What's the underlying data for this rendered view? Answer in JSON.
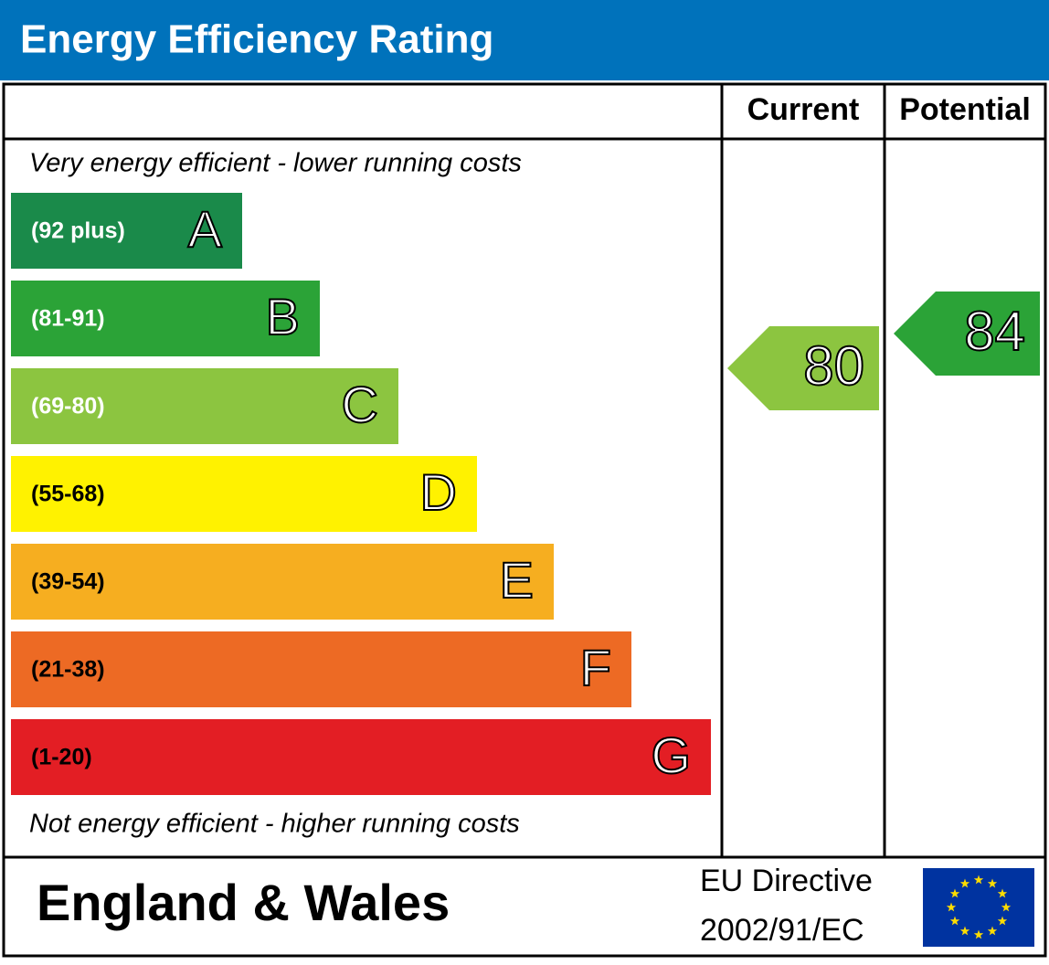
{
  "header": {
    "title": "Energy Efficiency Rating"
  },
  "columns": {
    "current": "Current",
    "potential": "Potential"
  },
  "top_note": "Very energy efficient - lower running costs",
  "bottom_note": "Not energy efficient - higher running costs",
  "bands": [
    {
      "range": "(92 plus)",
      "letter": "A",
      "color": "#1a8a4a"
    },
    {
      "range": "(81-91)",
      "letter": "B",
      "color": "#2ba337"
    },
    {
      "range": "(69-80)",
      "letter": "C",
      "color": "#8cc540"
    },
    {
      "range": "(55-68)",
      "letter": "D",
      "color": "#fff200"
    },
    {
      "range": "(39-54)",
      "letter": "E",
      "color": "#f6ae20"
    },
    {
      "range": "(21-38)",
      "letter": "F",
      "color": "#ed6a24"
    },
    {
      "range": "(1-20)",
      "letter": "G",
      "color": "#e31e24"
    }
  ],
  "current": {
    "value": 80,
    "color": "#8cc540"
  },
  "potential": {
    "value": 84,
    "color": "#2ba337"
  },
  "footer": {
    "region": "England & Wales",
    "directive": [
      "EU Directive",
      "2002/91/EC"
    ]
  }
}
